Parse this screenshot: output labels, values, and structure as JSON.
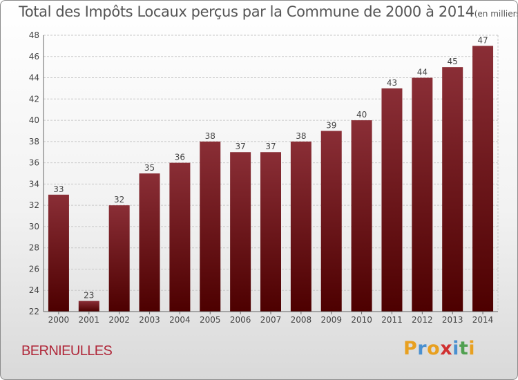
{
  "header": {
    "title": "Total des Impôts Locaux perçus par la Commune de 2000 à 2014",
    "unit": "(en milliers d'€)"
  },
  "footer": {
    "commune": "BERNIEULLES",
    "logo_letters": [
      "P",
      "r",
      "o",
      "x",
      "i",
      "t",
      "i"
    ],
    "logo_colors": [
      "#e8a020",
      "#4a90d0",
      "#e8a020",
      "#d03030",
      "#4a90d0",
      "#50a050",
      "#e8a020"
    ]
  },
  "colors": {
    "bar_top": "#8a2e36",
    "bar_bottom": "#4d0000",
    "grid": "#c8c8c8",
    "axis_text": "#444444"
  },
  "chart_data": {
    "type": "bar",
    "title": "Total des Impôts Locaux perçus par la Commune de 2000 à 2014",
    "xlabel": "",
    "ylabel": "",
    "categories": [
      "2000",
      "2001",
      "2002",
      "2003",
      "2004",
      "2005",
      "2006",
      "2007",
      "2008",
      "2009",
      "2010",
      "2011",
      "2012",
      "2013",
      "2014"
    ],
    "values": [
      33,
      23,
      32,
      35,
      36,
      38,
      37,
      37,
      38,
      39,
      40,
      43,
      44,
      45,
      47
    ],
    "ylim": [
      22,
      48
    ],
    "yticks": [
      22,
      24,
      26,
      28,
      30,
      32,
      34,
      36,
      38,
      40,
      42,
      44,
      46,
      48
    ],
    "grid": true,
    "legend": "none"
  }
}
